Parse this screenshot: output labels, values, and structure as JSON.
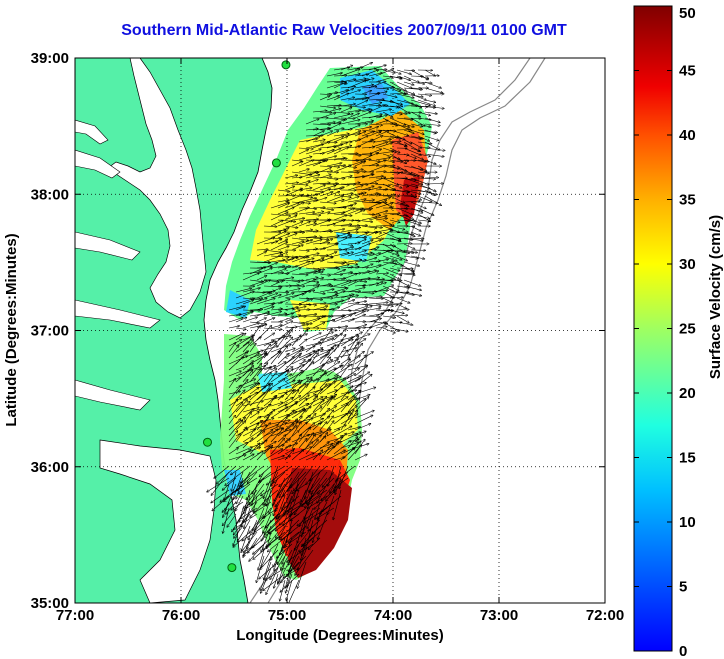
{
  "title": "Southern Mid-Atlantic Raw Velocities 2007/09/11 0100 GMT",
  "map": {
    "xlabel": "Longitude (Degrees:Minutes)",
    "ylabel": "Latitude (Degrees:Minutes)",
    "x_ticks": [
      "77:00",
      "76:00",
      "75:00",
      "74:00",
      "73:00",
      "72:00"
    ],
    "y_ticks": [
      "39:00",
      "38:00",
      "37:00",
      "36:00",
      "35:00"
    ],
    "xlim": [
      -77,
      -72
    ],
    "ylim": [
      35,
      39
    ],
    "land_color": "#55f0a8",
    "grid": "dotted"
  },
  "colorbar": {
    "label": "Surface Velocity (cm/s)",
    "ticks": [
      "0",
      "5",
      "10",
      "15",
      "20",
      "25",
      "30",
      "35",
      "40",
      "45",
      "50"
    ],
    "range": [
      0,
      50
    ],
    "colormap": "jet"
  },
  "radar_sites": [
    {
      "lat": 38.95,
      "lon": -75.01
    },
    {
      "lat": 38.23,
      "lon": -75.1
    },
    {
      "lat": 36.18,
      "lon": -75.75
    },
    {
      "lat": 35.26,
      "lon": -75.52
    }
  ]
}
